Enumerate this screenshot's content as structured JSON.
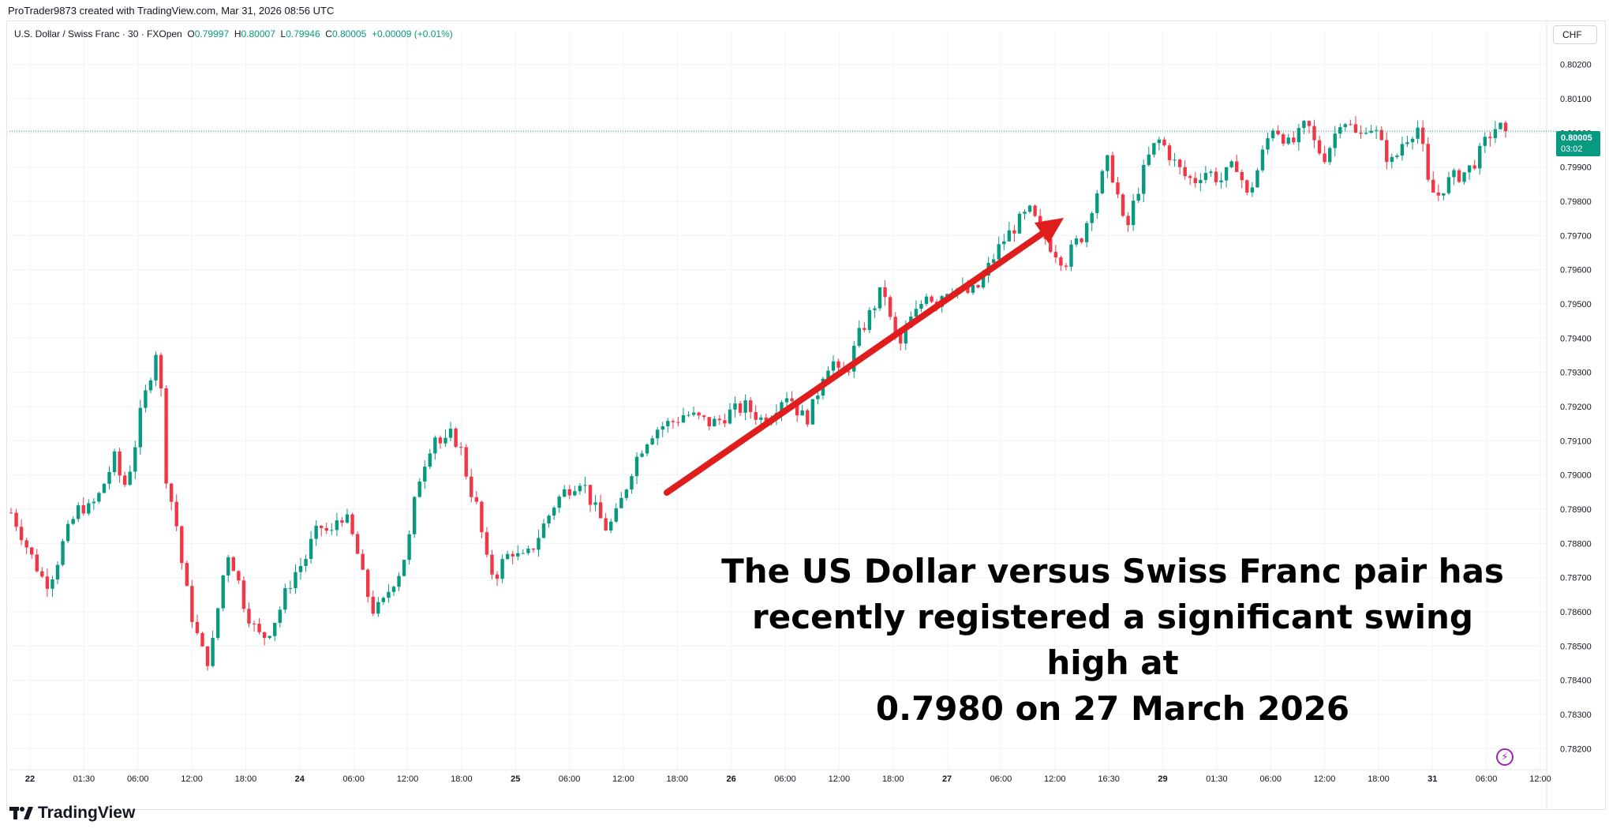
{
  "header": {
    "attribution": "ProTrader9873 created with TradingView.com, Mar 31, 2026 08:56 UTC"
  },
  "legend": {
    "symbol": "U.S. Dollar / Swiss Franc · 30 · FXOpen",
    "o_label": "O",
    "o_value": "0.79997",
    "h_label": "H",
    "h_value": "0.80007",
    "l_label": "L",
    "l_value": "0.79946",
    "c_label": "C",
    "c_value": "0.80005",
    "change": "+0.00009 (+0.01%)"
  },
  "currency_label": "CHF",
  "last_price": {
    "price": "0.80005",
    "countdown": "03:02"
  },
  "annotation_lines": [
    "The US Dollar versus Swiss Franc pair has",
    "recently registered a significant swing high at",
    "0.7980 on 27 March 2026"
  ],
  "footer": {
    "brand": "TradingView"
  },
  "colors": {
    "up": "#089981",
    "down": "#f23645",
    "arrow": "#e01d1d",
    "grid": "#f0f3fa",
    "axis_text": "#131722",
    "last_price_line": "#089981"
  },
  "icons": {
    "lightning": "lightning-icon",
    "logo": "tradingview-logo-icon"
  },
  "chart_data": {
    "type": "candlestick",
    "y_axis": {
      "ticks": [
        "0.78200",
        "0.78300",
        "0.78400",
        "0.78500",
        "0.78600",
        "0.78700",
        "0.78800",
        "0.78900",
        "0.79000",
        "0.79100",
        "0.79200",
        "0.79300",
        "0.79400",
        "0.79500",
        "0.79600",
        "0.79700",
        "0.79800",
        "0.79900",
        "0.80000",
        "0.80100",
        "0.80200"
      ],
      "range": [
        0.7815,
        0.8025
      ]
    },
    "x_axis": {
      "ticks": [
        "22",
        "01:30",
        "06:00",
        "12:00",
        "18:00",
        "24",
        "06:00",
        "12:00",
        "18:00",
        "25",
        "06:00",
        "12:00",
        "18:00",
        "26",
        "06:00",
        "12:00",
        "18:00",
        "27",
        "06:00",
        "12:00",
        "16:30",
        "29",
        "01:30",
        "06:00",
        "12:00",
        "18:00",
        "31",
        "06:00",
        "12:00"
      ]
    },
    "last_price": 0.80005,
    "price_path": [
      0.7889,
      0.7884,
      0.7878,
      0.7873,
      0.7868,
      0.7872,
      0.788,
      0.7886,
      0.7891,
      0.789,
      0.7893,
      0.7899,
      0.7905,
      0.7896,
      0.7904,
      0.7918,
      0.7928,
      0.7939,
      0.7898,
      0.7888,
      0.787,
      0.7858,
      0.7849,
      0.7845,
      0.7862,
      0.7878,
      0.7872,
      0.7862,
      0.7856,
      0.7852,
      0.7855,
      0.786,
      0.7867,
      0.7872,
      0.7875,
      0.7882,
      0.7885,
      0.7882,
      0.7889,
      0.7886,
      0.7878,
      0.7867,
      0.786,
      0.7862,
      0.7868,
      0.7872,
      0.788,
      0.7897,
      0.7905,
      0.7912,
      0.7908,
      0.7912,
      0.7908,
      0.7897,
      0.789,
      0.7875,
      0.787,
      0.7875,
      0.7878,
      0.7875,
      0.7877,
      0.7882,
      0.7887,
      0.7892,
      0.7895,
      0.7897,
      0.7899,
      0.7893,
      0.7888,
      0.7884,
      0.7888,
      0.7895,
      0.7903,
      0.7908,
      0.7912,
      0.7914,
      0.7915,
      0.7916,
      0.7918,
      0.7917,
      0.7916,
      0.7915,
      0.7916,
      0.7918,
      0.7919,
      0.792,
      0.7918,
      0.7916,
      0.7918,
      0.7922,
      0.7924,
      0.7919,
      0.7916,
      0.7921,
      0.793,
      0.7934,
      0.7928,
      0.7932,
      0.794,
      0.7945,
      0.795,
      0.7955,
      0.7942,
      0.7938,
      0.7945,
      0.7948,
      0.7954,
      0.795,
      0.7954,
      0.7955,
      0.7954,
      0.7953,
      0.7955,
      0.796,
      0.7965,
      0.7969,
      0.7972,
      0.7975,
      0.7977,
      0.7972,
      0.7968,
      0.7965,
      0.7962,
      0.7967,
      0.797,
      0.7978,
      0.7985,
      0.7992,
      0.7983,
      0.797,
      0.798,
      0.7988,
      0.7995,
      0.7998,
      0.7994,
      0.799,
      0.7987,
      0.7986,
      0.7989,
      0.7988,
      0.7986,
      0.7989,
      0.7991,
      0.7981,
      0.7987,
      0.7995,
      0.8002,
      0.8,
      0.7996,
      0.7999,
      0.8003,
      0.7996,
      0.7993,
      0.7998,
      0.8005,
      0.8002,
      0.7998,
      0.8003,
      0.8,
      0.7994,
      0.7991,
      0.7997,
      0.8,
      0.8002,
      0.7985,
      0.7981,
      0.7985,
      0.7987,
      0.7988,
      0.799,
      0.7994,
      0.7999,
      0.8002,
      0.80005
    ]
  }
}
